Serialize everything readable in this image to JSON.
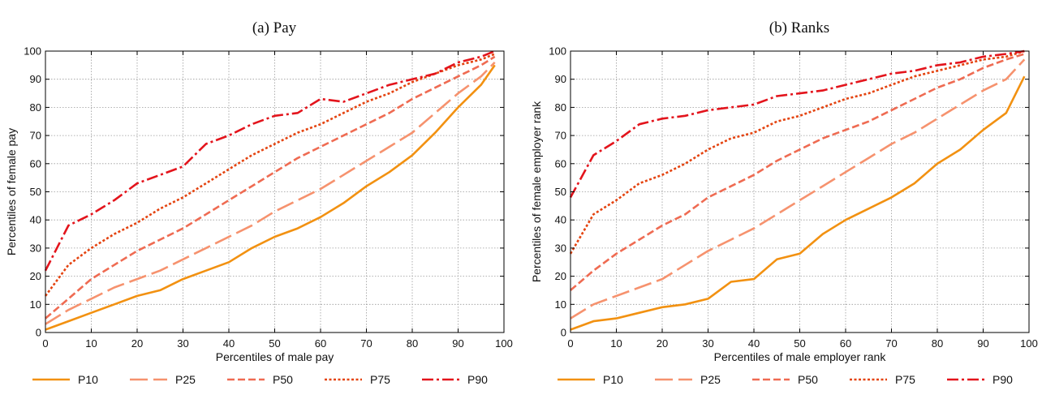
{
  "chart_data": [
    {
      "type": "line",
      "title": "(a) Pay",
      "xlabel": "Percentiles of male pay",
      "ylabel": "Percentiles of female pay",
      "xlim": [
        0,
        100
      ],
      "ylim": [
        0,
        100
      ],
      "xticks": [
        "0",
        "10",
        "20",
        "30",
        "40",
        "50",
        "60",
        "70",
        "80",
        "90",
        "100"
      ],
      "yticks": [
        "0",
        "10",
        "20",
        "30",
        "40",
        "50",
        "60",
        "70",
        "80",
        "90",
        "100"
      ],
      "grid": true,
      "legend_position": "bottom",
      "x": [
        0,
        5,
        10,
        15,
        20,
        25,
        30,
        35,
        40,
        45,
        50,
        55,
        60,
        65,
        70,
        75,
        80,
        85,
        90,
        95,
        98
      ],
      "series": [
        {
          "name": "P10",
          "color": "#f29111",
          "dash": "solid",
          "values": [
            1,
            4,
            7,
            10,
            13,
            15,
            19,
            22,
            25,
            30,
            34,
            37,
            41,
            46,
            52,
            57,
            63,
            71,
            80,
            88,
            95
          ]
        },
        {
          "name": "P25",
          "color": "#f6926e",
          "dash": "long-dash",
          "values": [
            3,
            8,
            12,
            16,
            19,
            22,
            26,
            30,
            34,
            38,
            43,
            47,
            51,
            56,
            61,
            66,
            71,
            78,
            85,
            91,
            96
          ]
        },
        {
          "name": "P50",
          "color": "#ef6b52",
          "dash": "dash",
          "values": [
            5,
            12,
            19,
            24,
            29,
            33,
            37,
            42,
            47,
            52,
            57,
            62,
            66,
            70,
            74,
            78,
            83,
            87,
            91,
            95,
            98
          ]
        },
        {
          "name": "P75",
          "color": "#e4430f",
          "dash": "dot",
          "values": [
            13,
            24,
            30,
            35,
            39,
            44,
            48,
            53,
            58,
            63,
            67,
            71,
            74,
            78,
            82,
            85,
            89,
            92,
            95,
            97,
            99
          ]
        },
        {
          "name": "P90",
          "color": "#e3141c",
          "dash": "dash-dot",
          "values": [
            22,
            38,
            42,
            47,
            53,
            56,
            59,
            67,
            70,
            74,
            77,
            78,
            83,
            82,
            85,
            88,
            90,
            92,
            96,
            98,
            100
          ]
        }
      ]
    },
    {
      "type": "line",
      "title": "(b) Ranks",
      "xlabel": "Percentiles of male employer rank",
      "ylabel": "Percentiles of female employer rank",
      "xlim": [
        0,
        100
      ],
      "ylim": [
        0,
        100
      ],
      "xticks": [
        "0",
        "10",
        "20",
        "30",
        "40",
        "50",
        "60",
        "70",
        "80",
        "90",
        "100"
      ],
      "yticks": [
        "0",
        "10",
        "20",
        "30",
        "40",
        "50",
        "60",
        "70",
        "80",
        "90",
        "100"
      ],
      "grid": true,
      "legend_position": "bottom",
      "x": [
        0,
        5,
        10,
        15,
        20,
        25,
        30,
        35,
        40,
        45,
        50,
        55,
        60,
        65,
        70,
        75,
        80,
        85,
        90,
        95,
        99
      ],
      "series": [
        {
          "name": "P10",
          "color": "#f29111",
          "dash": "solid",
          "values": [
            1,
            4,
            5,
            7,
            9,
            10,
            12,
            18,
            19,
            26,
            28,
            35,
            40,
            44,
            48,
            53,
            60,
            65,
            72,
            78,
            91
          ]
        },
        {
          "name": "P25",
          "color": "#f6926e",
          "dash": "long-dash",
          "values": [
            5,
            10,
            13,
            16,
            19,
            24,
            29,
            33,
            37,
            42,
            47,
            52,
            57,
            62,
            67,
            71,
            76,
            81,
            86,
            90,
            97
          ]
        },
        {
          "name": "P50",
          "color": "#ef6b52",
          "dash": "dash",
          "values": [
            15,
            22,
            28,
            33,
            38,
            42,
            48,
            52,
            56,
            61,
            65,
            69,
            72,
            75,
            79,
            83,
            87,
            90,
            94,
            97,
            99
          ]
        },
        {
          "name": "P75",
          "color": "#e4430f",
          "dash": "dot",
          "values": [
            28,
            42,
            47,
            53,
            56,
            60,
            65,
            69,
            71,
            75,
            77,
            80,
            83,
            85,
            88,
            91,
            93,
            95,
            97,
            98,
            100
          ]
        },
        {
          "name": "P90",
          "color": "#e3141c",
          "dash": "dash-dot",
          "values": [
            48,
            63,
            68,
            74,
            76,
            77,
            79,
            80,
            81,
            84,
            85,
            86,
            88,
            90,
            92,
            93,
            95,
            96,
            98,
            99,
            100
          ]
        }
      ]
    }
  ]
}
